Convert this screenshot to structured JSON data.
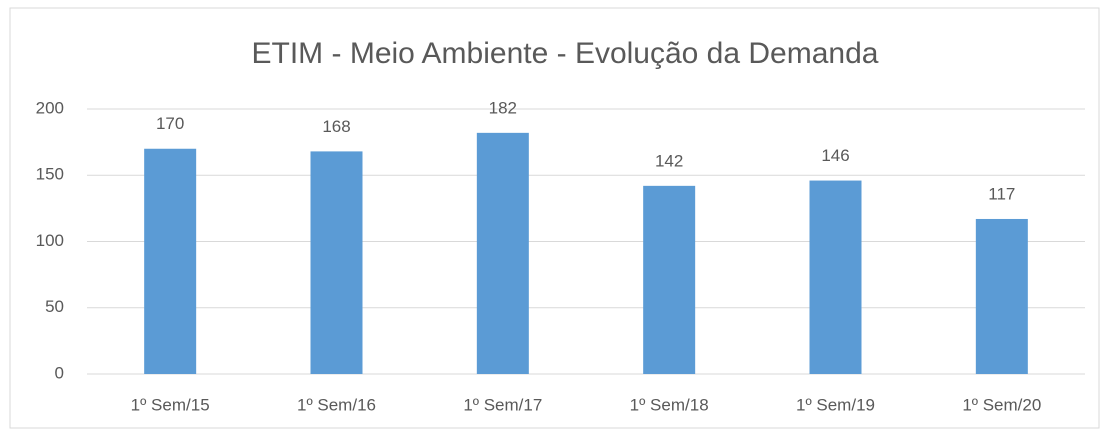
{
  "chart_data": {
    "type": "bar",
    "title": "ETIM - Meio Ambiente - Evolução da Demanda",
    "categories": [
      "1º Sem/15",
      "1º Sem/16",
      "1º Sem/17",
      "1º Sem/18",
      "1º Sem/19",
      "1º Sem/20"
    ],
    "values": [
      170,
      168,
      182,
      142,
      146,
      117
    ],
    "color": "#5b9bd5",
    "ylim": [
      0,
      200
    ],
    "yticks": [
      0,
      50,
      100,
      150,
      200
    ],
    "grid": true
  }
}
